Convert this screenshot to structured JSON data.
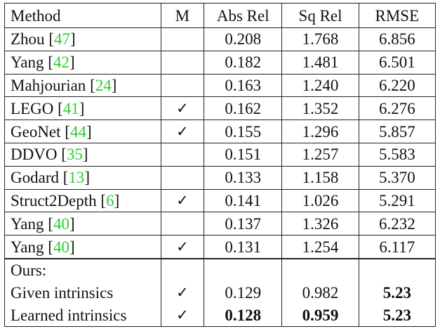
{
  "header": {
    "method": "Method",
    "m": "M",
    "abs_rel": "Abs Rel",
    "sq_rel": "Sq Rel",
    "rmse": "RMSE"
  },
  "check_mark": "✓",
  "rows": [
    {
      "name": "Zhou ",
      "cite": "47",
      "m": "",
      "abs_rel": "0.208",
      "sq_rel": "1.768",
      "rmse": "6.856"
    },
    {
      "name": "Yang ",
      "cite": "42",
      "m": "",
      "abs_rel": "0.182",
      "sq_rel": "1.481",
      "rmse": "6.501"
    },
    {
      "name": "Mahjourian ",
      "cite": "24",
      "m": "",
      "abs_rel": "0.163",
      "sq_rel": "1.240",
      "rmse": "6.220"
    },
    {
      "name": "LEGO ",
      "cite": "41",
      "m": "✓",
      "abs_rel": "0.162",
      "sq_rel": "1.352",
      "rmse": "6.276"
    },
    {
      "name": "GeoNet ",
      "cite": "44",
      "m": "✓",
      "abs_rel": "0.155",
      "sq_rel": "1.296",
      "rmse": "5.857"
    },
    {
      "name": "DDVO ",
      "cite": "35",
      "m": "",
      "abs_rel": "0.151",
      "sq_rel": "1.257",
      "rmse": "5.583"
    },
    {
      "name": "Godard ",
      "cite": "13",
      "m": "",
      "abs_rel": "0.133",
      "sq_rel": "1.158",
      "rmse": "5.370"
    },
    {
      "name": "Struct2Depth ",
      "cite": "6",
      "m": "✓",
      "abs_rel": "0.141",
      "sq_rel": "1.026",
      "rmse": "5.291"
    },
    {
      "name": "Yang ",
      "cite": "40",
      "m": "",
      "abs_rel": "0.137",
      "sq_rel": "1.326",
      "rmse": "6.232"
    },
    {
      "name": "Yang ",
      "cite": "40",
      "m": "✓",
      "abs_rel": "0.131",
      "sq_rel": "1.254",
      "rmse": "6.117"
    }
  ],
  "ours": {
    "label": "Ours:",
    "rows": [
      {
        "name": "Given intrinsics",
        "m": "✓",
        "abs_rel": "0.129",
        "sq_rel": "0.982",
        "rmse": "5.23",
        "bold": {
          "abs_rel": false,
          "sq_rel": false,
          "rmse": true
        }
      },
      {
        "name": "Learned intrinsics",
        "m": "✓",
        "abs_rel": "0.128",
        "sq_rel": "0.959",
        "rmse": "5.23",
        "bold": {
          "abs_rel": true,
          "sq_rel": true,
          "rmse": true
        }
      }
    ]
  },
  "colors": {
    "citation": "#2ecc2e",
    "text": "#111111",
    "rule": "#222222"
  }
}
